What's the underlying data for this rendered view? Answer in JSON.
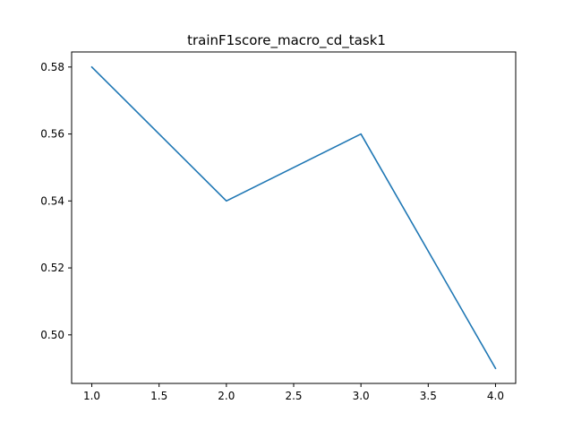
{
  "chart_data": {
    "type": "line",
    "title": "trainF1score_macro_cd_task1",
    "xlabel": "",
    "ylabel": "",
    "x": [
      1.0,
      2.0,
      3.0,
      4.0
    ],
    "series": [
      {
        "values": [
          0.58,
          0.54,
          0.56,
          0.49
        ],
        "color": "#1f77b4"
      }
    ],
    "xlim": [
      0.85,
      4.15
    ],
    "ylim": [
      0.4855,
      0.5845
    ],
    "xticks": [
      1.0,
      1.5,
      2.0,
      2.5,
      3.0,
      3.5,
      4.0
    ],
    "xtick_labels": [
      "1.0",
      "1.5",
      "2.0",
      "2.5",
      "3.0",
      "3.5",
      "4.0"
    ],
    "yticks": [
      0.5,
      0.52,
      0.54,
      0.56,
      0.58
    ],
    "ytick_labels": [
      "0.50",
      "0.52",
      "0.54",
      "0.56",
      "0.58"
    ],
    "grid": false,
    "legend": "none"
  }
}
